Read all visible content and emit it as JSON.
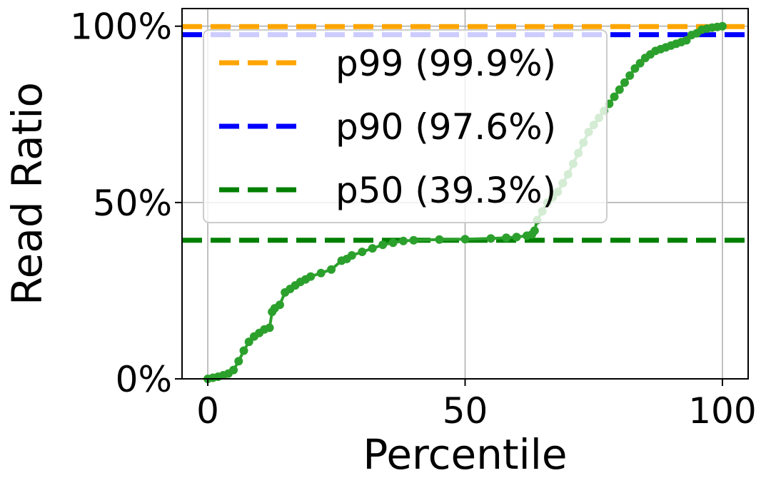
{
  "chart_data": {
    "type": "line",
    "xlabel": "Percentile",
    "ylabel": "Read Ratio",
    "xlim": [
      -5,
      105
    ],
    "ylim": [
      0,
      105
    ],
    "x_ticks": [
      {
        "value": 0,
        "label": "0"
      },
      {
        "value": 50,
        "label": "50"
      },
      {
        "value": 100,
        "label": "100"
      }
    ],
    "y_ticks": [
      {
        "value": 0,
        "label": "0%"
      },
      {
        "value": 50,
        "label": "50%"
      },
      {
        "value": 100,
        "label": "100%"
      }
    ],
    "grid": true,
    "legend_position": "top-left",
    "series": [
      {
        "color": "#2ca02c",
        "style": "line-with-markers",
        "x": [
          0,
          1,
          2,
          3,
          4,
          5,
          6,
          7,
          8,
          9,
          10,
          11,
          12,
          12.5,
          13,
          14,
          15,
          16,
          17,
          18,
          19,
          20,
          22,
          24,
          26,
          27,
          28,
          30,
          32,
          34,
          36,
          38,
          40,
          45,
          50,
          55,
          58,
          60,
          62,
          63,
          63.5,
          64,
          65,
          66,
          67,
          68,
          69,
          70,
          71,
          72,
          73,
          74,
          75,
          76,
          77,
          78,
          79,
          80,
          81,
          82,
          83,
          84,
          85,
          86,
          87,
          88,
          89,
          90,
          91,
          92,
          93,
          94,
          95,
          96,
          97,
          98,
          99,
          100
        ],
        "y": [
          0,
          0.3,
          0.6,
          1,
          1.5,
          2.5,
          5,
          8,
          10.5,
          12,
          13,
          14,
          14.5,
          19,
          20,
          21,
          24.5,
          25.5,
          26.5,
          27.5,
          28.2,
          29,
          30,
          31,
          33.5,
          34,
          35,
          36,
          37,
          38,
          38.6,
          39.1,
          39.3,
          39.5,
          39.6,
          39.8,
          40,
          40.2,
          40.6,
          41,
          42,
          45,
          47.5,
          50,
          51.5,
          53,
          55.5,
          58,
          61,
          64,
          67,
          70,
          72,
          74,
          76,
          78,
          80,
          82,
          84,
          86,
          88,
          89.5,
          91,
          92,
          93,
          93.5,
          94,
          94.5,
          95,
          95.5,
          96,
          97.5,
          98,
          99,
          99.3,
          99.6,
          99.8,
          100
        ]
      }
    ],
    "reference_lines": [
      {
        "name": "p99 (99.9%)",
        "value": 99.9,
        "color": "#ffa500"
      },
      {
        "name": "p90 (97.6%)",
        "value": 97.6,
        "color": "#0000ff"
      },
      {
        "name": "p50 (39.3%)",
        "value": 39.3,
        "color": "#008000"
      }
    ]
  }
}
